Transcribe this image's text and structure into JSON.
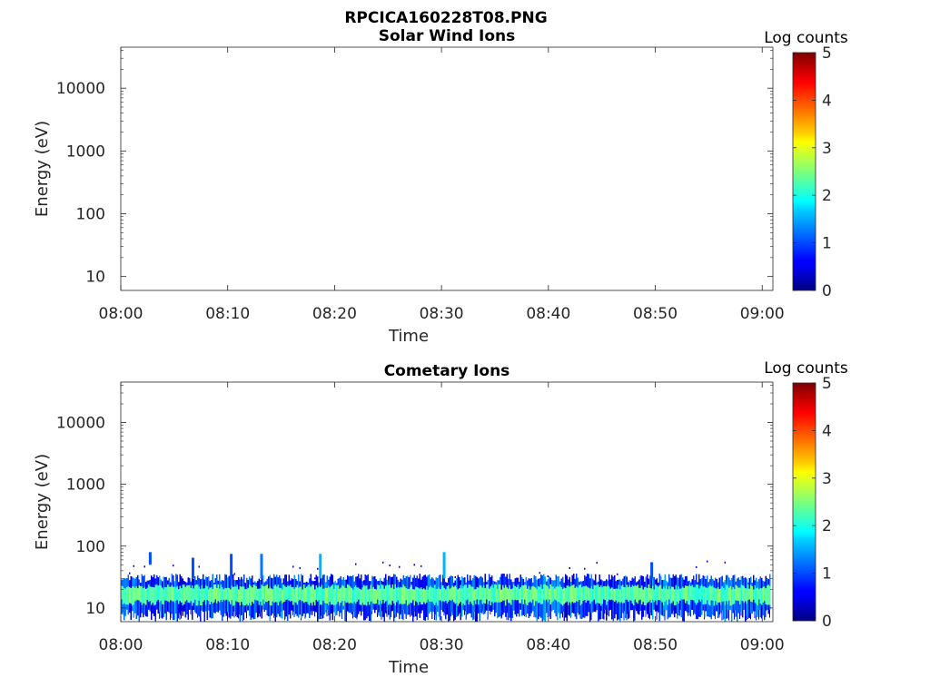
{
  "figure_title": "RPCICA160228T08.PNG",
  "colorbar": {
    "label": "Log counts",
    "ticks": [
      "0",
      "1",
      "2",
      "3",
      "4",
      "5"
    ],
    "range": [
      0,
      5
    ],
    "colormap": "jet"
  },
  "chart_data": [
    {
      "type": "heatmap",
      "title": "Solar Wind Ions",
      "xlabel": "Time",
      "ylabel": "Energy (eV)",
      "x_ticks": [
        "08:00",
        "08:10",
        "08:20",
        "08:30",
        "08:40",
        "08:50",
        "09:00"
      ],
      "xlim": [
        "08:00",
        "09:01"
      ],
      "y_scale": "log",
      "y_ticks": [
        "10",
        "100",
        "1000",
        "10000"
      ],
      "ylim": [
        6,
        45000
      ],
      "color_label": "Log counts",
      "color_range": [
        0,
        5
      ],
      "cells": []
    },
    {
      "type": "heatmap",
      "title": "Cometary Ions",
      "xlabel": "Time",
      "ylabel": "Energy (eV)",
      "x_ticks": [
        "08:00",
        "08:10",
        "08:20",
        "08:30",
        "08:40",
        "08:50",
        "09:00"
      ],
      "xlim": [
        "08:00",
        "09:01"
      ],
      "y_scale": "log",
      "y_ticks": [
        "10",
        "100",
        "1000",
        "10000"
      ],
      "ylim": [
        6,
        45000
      ],
      "color_label": "Log counts",
      "color_range": [
        0,
        5
      ],
      "band": {
        "time_range": [
          "08:00",
          "09:00"
        ],
        "core_energy_ev": [
          12,
          22
        ],
        "core_log_counts": [
          2.0,
          2.6
        ],
        "edge_energy_ev": [
          7,
          30
        ],
        "edge_log_counts": [
          0.3,
          1.5
        ]
      },
      "bursts": [
        {
          "time": "08:02:45",
          "energy_ev": [
            50,
            80
          ],
          "log_counts": 1.0
        },
        {
          "time": "08:06:45",
          "energy_ev": [
            30,
            65
          ],
          "log_counts": 1.0
        },
        {
          "time": "08:10:20",
          "energy_ev": [
            30,
            75
          ],
          "log_counts": 1.0
        },
        {
          "time": "08:13:10",
          "energy_ev": [
            30,
            75
          ],
          "log_counts": 1.2
        },
        {
          "time": "08:18:40",
          "energy_ev": [
            30,
            75
          ],
          "log_counts": 1.5
        },
        {
          "time": "08:30:15",
          "energy_ev": [
            30,
            80
          ],
          "log_counts": 1.5
        },
        {
          "time": "08:49:40",
          "energy_ev": [
            30,
            55
          ],
          "log_counts": 1.0
        }
      ]
    }
  ]
}
